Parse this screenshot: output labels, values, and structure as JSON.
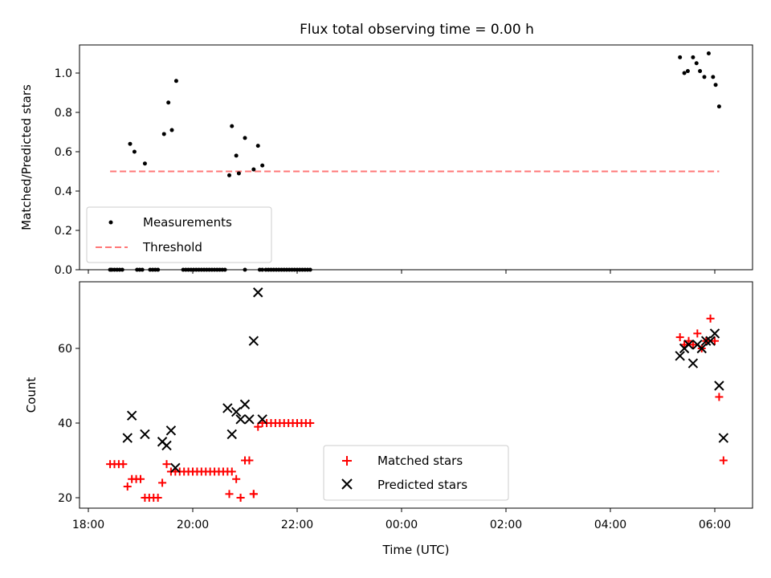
{
  "chart_data": [
    {
      "type": "scatter",
      "title": "Flux total observing time = 0.00 h",
      "xlabel": "",
      "ylabel": "Matched/Predicted stars",
      "ylim": [
        0,
        1.15
      ],
      "yticks": [
        "0.0",
        "0.2",
        "0.4",
        "0.6",
        "0.8",
        "1.0"
      ],
      "legend_position": "lower-left",
      "series": [
        {
          "name": "Measurements",
          "color": "#000000",
          "marker": "dot",
          "x": [
            "18:48",
            "18:53",
            "19:05",
            "19:27",
            "19:32",
            "19:36",
            "19:41",
            "20:42",
            "20:45",
            "20:50",
            "20:53",
            "21:00",
            "21:10",
            "21:15",
            "21:20",
            "18:25",
            "18:27",
            "18:30",
            "18:33",
            "18:36",
            "18:39",
            "18:56",
            "18:59",
            "19:02",
            "19:11",
            "19:14",
            "19:17",
            "19:20",
            "19:49",
            "19:52",
            "19:55",
            "19:58",
            "20:01",
            "20:04",
            "20:07",
            "20:10",
            "20:13",
            "20:16",
            "20:19",
            "20:22",
            "20:25",
            "20:28",
            "20:31",
            "20:34",
            "20:37",
            "21:00",
            "21:17",
            "21:20",
            "21:24",
            "21:27",
            "21:30",
            "21:33",
            "21:36",
            "21:39",
            "21:42",
            "21:45",
            "21:48",
            "21:51",
            "21:54",
            "21:57",
            "22:00",
            "22:03",
            "22:06",
            "22:09",
            "22:12",
            "22:15",
            "05:20",
            "05:25",
            "05:29",
            "05:35",
            "05:39",
            "05:43",
            "05:48",
            "05:53",
            "05:58",
            "06:01",
            "06:05"
          ],
          "y": [
            0.64,
            0.6,
            0.54,
            0.69,
            0.85,
            0.71,
            0.96,
            0.48,
            0.73,
            0.58,
            0.49,
            0.67,
            0.51,
            0.63,
            0.53,
            0,
            0,
            0,
            0,
            0,
            0,
            0,
            0,
            0,
            0,
            0,
            0,
            0,
            0,
            0,
            0,
            0,
            0,
            0,
            0,
            0,
            0,
            0,
            0,
            0,
            0,
            0,
            0,
            0,
            0,
            0,
            0,
            0,
            0,
            0,
            0,
            0,
            0,
            0,
            0,
            0,
            0,
            0,
            0,
            0,
            0,
            0,
            0,
            0,
            0,
            0,
            1.08,
            1.0,
            1.01,
            1.08,
            1.05,
            1.01,
            0.98,
            1.1,
            0.98,
            0.94,
            0.83
          ]
        },
        {
          "name": "Threshold",
          "color": "#ff7777",
          "style": "dashed",
          "x": [
            "18:25",
            "06:05"
          ],
          "y": [
            0.5,
            0.5
          ]
        }
      ]
    },
    {
      "type": "scatter",
      "title": "",
      "xlabel": "Time (UTC)",
      "ylabel": "Count",
      "ylim": [
        18,
        77
      ],
      "yticks": [
        "20",
        "40",
        "60"
      ],
      "xticks": [
        "18:00",
        "20:00",
        "22:00",
        "00:00",
        "02:00",
        "04:00",
        "06:00"
      ],
      "legend_position": "lower-center",
      "series": [
        {
          "name": "Matched stars",
          "color": "#ff0000",
          "marker": "plus",
          "x": [
            "18:25",
            "18:30",
            "18:35",
            "18:40",
            "18:45",
            "18:50",
            "18:55",
            "19:00",
            "19:05",
            "19:10",
            "19:15",
            "19:20",
            "19:25",
            "19:30",
            "19:35",
            "19:40",
            "19:45",
            "19:50",
            "19:55",
            "20:00",
            "20:05",
            "20:10",
            "20:15",
            "20:20",
            "20:25",
            "20:30",
            "20:35",
            "20:40",
            "20:45",
            "20:50",
            "20:55",
            "21:00",
            "21:05",
            "21:10",
            "21:15",
            "21:20",
            "21:25",
            "21:30",
            "21:35",
            "21:40",
            "21:45",
            "21:50",
            "21:55",
            "22:00",
            "22:05",
            "22:10",
            "22:15",
            "20:42",
            "20:55",
            "21:00",
            "21:10",
            "05:20",
            "05:25",
            "05:30",
            "05:35",
            "05:40",
            "05:45",
            "05:50",
            "05:55",
            "06:00",
            "06:05",
            "06:10"
          ],
          "y": [
            29,
            29,
            29,
            29,
            23,
            25,
            25,
            25,
            20,
            20,
            20,
            20,
            24,
            29,
            27,
            27,
            27,
            27,
            27,
            27,
            27,
            27,
            27,
            27,
            27,
            27,
            27,
            27,
            27,
            25,
            20,
            30,
            30,
            21,
            39,
            40,
            40,
            40,
            40,
            40,
            40,
            40,
            40,
            40,
            40,
            40,
            40,
            21,
            20,
            30,
            21,
            63,
            61,
            62,
            61,
            64,
            60,
            62,
            68,
            62,
            47,
            30
          ]
        },
        {
          "name": "Predicted stars",
          "color": "#000000",
          "marker": "x",
          "x": [
            "18:45",
            "18:50",
            "19:05",
            "19:25",
            "19:30",
            "19:35",
            "19:40",
            "20:40",
            "20:45",
            "20:50",
            "20:55",
            "21:00",
            "21:05",
            "21:10",
            "21:15",
            "21:20",
            "05:20",
            "05:25",
            "05:30",
            "05:35",
            "05:40",
            "05:45",
            "05:50",
            "05:55",
            "06:00",
            "06:05",
            "06:10"
          ],
          "y": [
            36,
            42,
            37,
            35,
            34,
            38,
            28,
            44,
            37,
            43,
            41,
            45,
            41,
            62,
            75,
            41,
            58,
            60,
            61,
            56,
            61,
            60,
            62,
            62,
            64,
            50,
            36
          ]
        }
      ]
    }
  ]
}
